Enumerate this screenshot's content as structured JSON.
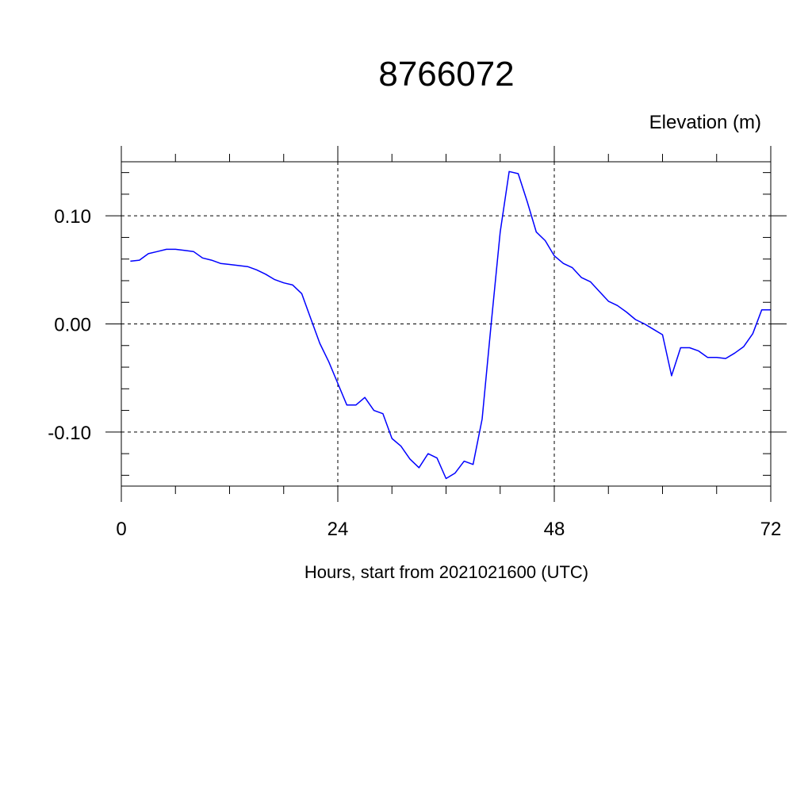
{
  "chart_data": {
    "type": "line",
    "title": "8766072",
    "ylabel": "Elevation (m)",
    "xlabel": "Hours, start from 2021021600 (UTC)",
    "xlim": [
      0,
      72
    ],
    "ylim": [
      -0.15,
      0.15
    ],
    "x_ticks": [
      0,
      24,
      48,
      72
    ],
    "x_tick_labels": [
      "0",
      "24",
      "48",
      "72"
    ],
    "y_ticks": [
      0.1,
      0.0,
      -0.1
    ],
    "y_tick_labels": [
      "0.10",
      "0.00",
      "-0.10"
    ],
    "grid": true,
    "colors": {
      "line": "#0000ff",
      "axis": "#000000",
      "grid": "#000000"
    },
    "series": [
      {
        "x": [
          1,
          2,
          3,
          4,
          5,
          6,
          7,
          8,
          9,
          10,
          11,
          12,
          13,
          14,
          15,
          16,
          17,
          18,
          19,
          20,
          21,
          22,
          23,
          24,
          25,
          26,
          27,
          28,
          29,
          30,
          31,
          32,
          33,
          34,
          35,
          36,
          37,
          38,
          39,
          40,
          41,
          42,
          43,
          44,
          45,
          46,
          47,
          48,
          49,
          50,
          51,
          52,
          53,
          54,
          55,
          56,
          57,
          58,
          59,
          60,
          61,
          62,
          63,
          64,
          65,
          66,
          67,
          68,
          69,
          70,
          71,
          72
        ],
        "values": [
          0.058,
          0.059,
          0.065,
          0.067,
          0.069,
          0.069,
          0.068,
          0.067,
          0.061,
          0.059,
          0.056,
          0.055,
          0.054,
          0.053,
          0.05,
          0.046,
          0.041,
          0.038,
          0.036,
          0.028,
          0.005,
          -0.018,
          -0.035,
          -0.055,
          -0.075,
          -0.075,
          -0.068,
          -0.08,
          -0.083,
          -0.106,
          -0.113,
          -0.125,
          -0.133,
          -0.12,
          -0.124,
          -0.143,
          -0.138,
          -0.127,
          -0.13,
          -0.088,
          0.0,
          0.085,
          0.141,
          0.139,
          0.113,
          0.085,
          0.077,
          0.063,
          0.056,
          0.052,
          0.043,
          0.039,
          0.03,
          0.021,
          0.017,
          0.011,
          0.004,
          0.0,
          -0.005,
          -0.01,
          -0.048,
          -0.022,
          -0.022,
          -0.025,
          -0.031,
          -0.031,
          -0.032,
          -0.027,
          -0.021,
          -0.009,
          0.013,
          0.013
        ]
      }
    ]
  }
}
